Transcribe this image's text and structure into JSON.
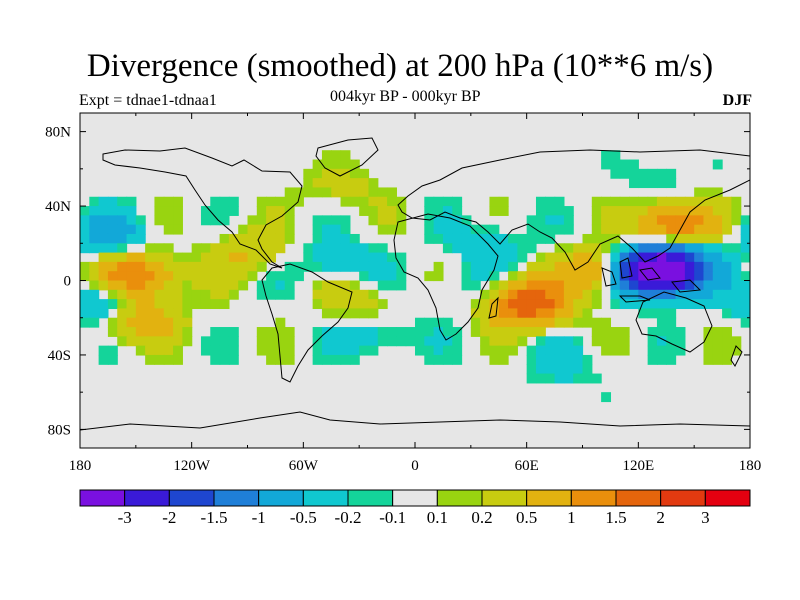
{
  "title": "Divergence (smoothed) at 200 hPa (10**6 m/s)",
  "left_label": "Expt = tdnae1-tdnaa1",
  "center_label": "004kyr BP - 000kyr BP",
  "right_label": "DJF",
  "lat_labels": [
    "80N",
    "40N",
    "0",
    "40S",
    "80S"
  ],
  "lon_labels": [
    "180",
    "120W",
    "60W",
    "0",
    "60E",
    "120E",
    "180"
  ],
  "colorbar": {
    "labels": [
      "-3",
      "-2",
      "-1.5",
      "-1",
      "-0.5",
      "-0.2",
      "-0.1",
      "0.1",
      "0.2",
      "0.5",
      "1",
      "1.5",
      "2",
      "3"
    ],
    "colors": [
      "#7a10e0",
      "#3a1ad8",
      "#1e46d0",
      "#1f7fd8",
      "#12a8d8",
      "#10c8d0",
      "#14d49a",
      "#e6e6e6",
      "#99d410",
      "#c8cc10",
      "#e2b210",
      "#ea8f0c",
      "#e5650c",
      "#e23a10",
      "#e40010"
    ]
  },
  "chart_data": {
    "type": "map",
    "variable": "Divergence (smoothed) at 200 hPa",
    "units": "10**6 m/s",
    "season": "DJF",
    "difference": "004kyr BP - 000kyr BP",
    "experiment": "tdnae1-tdnaa1",
    "lat_range": [
      -90,
      90
    ],
    "lon_range": [
      -180,
      180
    ],
    "levels": [
      -3,
      -2,
      -1.5,
      -1,
      -0.5,
      -0.2,
      -0.1,
      0.1,
      0.2,
      0.5,
      1,
      1.5,
      2,
      3
    ],
    "features": [
      {
        "lat": 5,
        "lon": 128,
        "value": -3.5
      },
      {
        "lat": 8,
        "lon": 140,
        "value": -1.5
      },
      {
        "lat": 30,
        "lon": 140,
        "value": 1.5
      },
      {
        "lat": -12,
        "lon": 60,
        "value": 2.0
      },
      {
        "lat": 5,
        "lon": 100,
        "value": 1.2
      },
      {
        "lat": 2,
        "lon": -150,
        "value": 1.5
      },
      {
        "lat": -12,
        "lon": -165,
        "value": -1.0
      },
      {
        "lat": 25,
        "lon": -165,
        "value": -0.7
      },
      {
        "lat": -20,
        "lon": -150,
        "value": 1.0
      },
      {
        "lat": 10,
        "lon": -40,
        "value": -0.5
      },
      {
        "lat": 15,
        "lon": -90,
        "value": 0.5
      },
      {
        "lat": -10,
        "lon": -30,
        "value": 0.4
      },
      {
        "lat": -30,
        "lon": -20,
        "value": -0.4
      },
      {
        "lat": 20,
        "lon": 40,
        "value": -0.4
      },
      {
        "lat": -5,
        "lon": 30,
        "value": -0.3
      },
      {
        "lat": 50,
        "lon": -40,
        "value": 0.3
      },
      {
        "lat": -45,
        "lon": 80,
        "value": -0.3
      },
      {
        "lat": 55,
        "lon": 130,
        "value": -0.2
      }
    ]
  }
}
